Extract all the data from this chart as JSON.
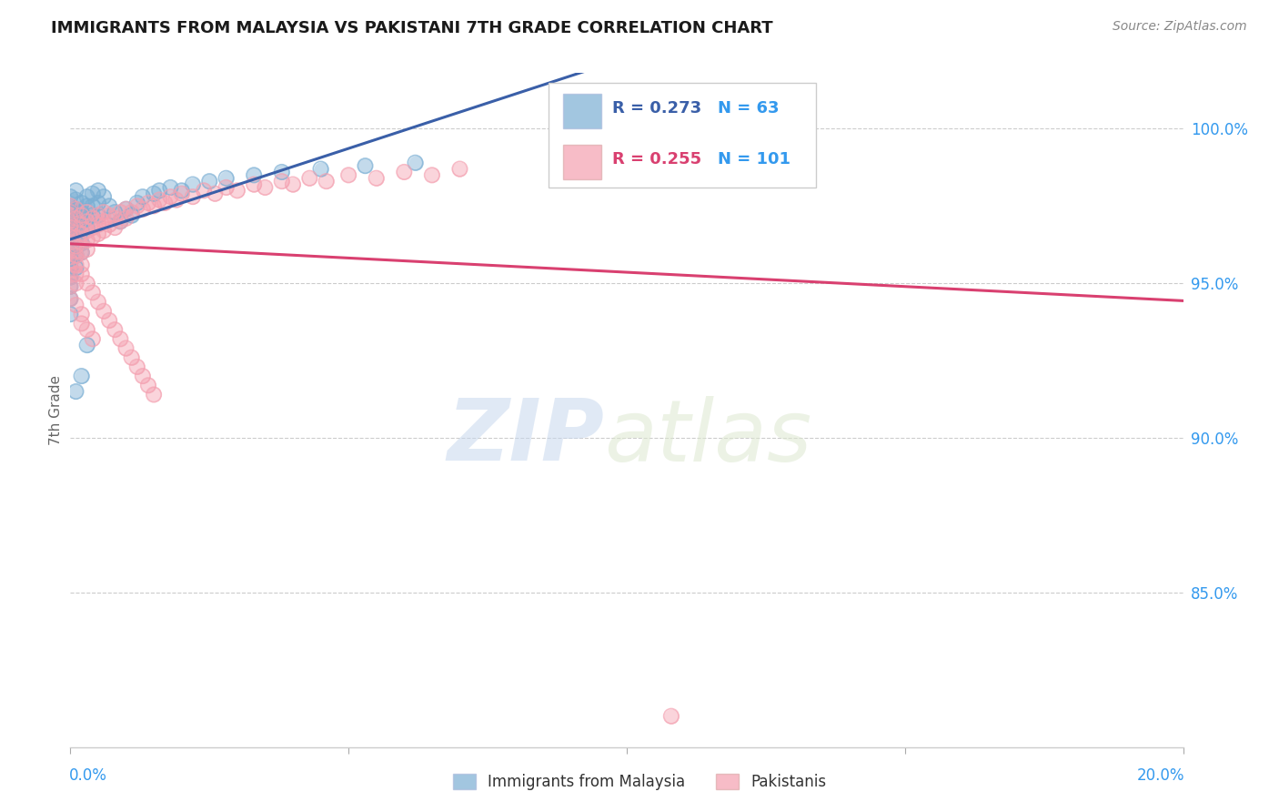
{
  "title": "IMMIGRANTS FROM MALAYSIA VS PAKISTANI 7TH GRADE CORRELATION CHART",
  "source": "Source: ZipAtlas.com",
  "ylabel": "7th Grade",
  "yticks": [
    100.0,
    95.0,
    90.0,
    85.0
  ],
  "ytick_labels": [
    "100.0%",
    "95.0%",
    "90.0%",
    "85.0%"
  ],
  "legend_label1": "Immigrants from Malaysia",
  "legend_label2": "Pakistanis",
  "color_blue": "#7BAFD4",
  "color_pink": "#F4A0B0",
  "color_line_blue": "#3A5FA8",
  "color_line_pink": "#D94070",
  "bg_color": "#ffffff",
  "watermark_zip": "ZIP",
  "watermark_atlas": "atlas",
  "blue_x": [
    0.0,
    0.0,
    0.0,
    0.0,
    0.0,
    0.0,
    0.0,
    0.0,
    0.0,
    0.0,
    0.0,
    0.0,
    0.0,
    0.0,
    0.0,
    0.001,
    0.001,
    0.001,
    0.001,
    0.001,
    0.001,
    0.001,
    0.001,
    0.001,
    0.002,
    0.002,
    0.002,
    0.002,
    0.002,
    0.002,
    0.003,
    0.003,
    0.003,
    0.003,
    0.004,
    0.004,
    0.004,
    0.005,
    0.005,
    0.005,
    0.006,
    0.007,
    0.008,
    0.009,
    0.01,
    0.011,
    0.012,
    0.013,
    0.015,
    0.016,
    0.018,
    0.02,
    0.022,
    0.025,
    0.028,
    0.033,
    0.038,
    0.045,
    0.053,
    0.062,
    0.001,
    0.002,
    0.003
  ],
  "blue_y": [
    97.8,
    97.5,
    97.3,
    97.1,
    96.9,
    96.7,
    96.5,
    96.2,
    96.0,
    95.8,
    95.5,
    95.2,
    94.9,
    94.5,
    94.0,
    98.0,
    97.7,
    97.4,
    97.1,
    96.8,
    96.5,
    96.2,
    95.9,
    95.5,
    97.6,
    97.3,
    97.0,
    96.7,
    96.3,
    96.0,
    97.8,
    97.5,
    97.1,
    96.8,
    97.9,
    97.5,
    97.2,
    98.0,
    97.6,
    97.2,
    97.8,
    97.5,
    97.3,
    97.0,
    97.4,
    97.2,
    97.6,
    97.8,
    97.9,
    98.0,
    98.1,
    98.0,
    98.2,
    98.3,
    98.4,
    98.5,
    98.6,
    98.7,
    98.8,
    98.9,
    91.5,
    92.0,
    93.0
  ],
  "pink_x": [
    0.0,
    0.0,
    0.0,
    0.0,
    0.0,
    0.0,
    0.0,
    0.0,
    0.0,
    0.0,
    0.0,
    0.0,
    0.001,
    0.001,
    0.001,
    0.001,
    0.001,
    0.001,
    0.001,
    0.001,
    0.001,
    0.002,
    0.002,
    0.002,
    0.002,
    0.002,
    0.003,
    0.003,
    0.003,
    0.003,
    0.003,
    0.004,
    0.004,
    0.004,
    0.005,
    0.005,
    0.005,
    0.006,
    0.006,
    0.006,
    0.007,
    0.007,
    0.008,
    0.008,
    0.009,
    0.009,
    0.01,
    0.01,
    0.011,
    0.012,
    0.013,
    0.014,
    0.015,
    0.016,
    0.017,
    0.018,
    0.019,
    0.02,
    0.022,
    0.024,
    0.026,
    0.028,
    0.03,
    0.033,
    0.035,
    0.038,
    0.04,
    0.043,
    0.046,
    0.05,
    0.055,
    0.06,
    0.065,
    0.07,
    0.0,
    0.001,
    0.002,
    0.002,
    0.003,
    0.004,
    0.0,
    0.0,
    0.001,
    0.001,
    0.002,
    0.002,
    0.003,
    0.004,
    0.005,
    0.006,
    0.007,
    0.008,
    0.009,
    0.01,
    0.011,
    0.012,
    0.013,
    0.014,
    0.015,
    0.108
  ],
  "pink_y": [
    97.5,
    97.3,
    97.1,
    96.9,
    96.7,
    96.5,
    96.2,
    96.0,
    95.7,
    95.5,
    95.2,
    94.9,
    97.4,
    97.1,
    96.8,
    96.5,
    96.2,
    95.9,
    95.6,
    95.3,
    95.0,
    97.2,
    96.9,
    96.6,
    96.3,
    96.0,
    97.3,
    97.0,
    96.7,
    96.4,
    96.1,
    97.1,
    96.8,
    96.5,
    97.2,
    96.9,
    96.6,
    97.3,
    97.0,
    96.7,
    97.2,
    96.9,
    97.1,
    96.8,
    97.3,
    97.0,
    97.4,
    97.1,
    97.3,
    97.5,
    97.4,
    97.6,
    97.5,
    97.7,
    97.6,
    97.8,
    97.7,
    97.9,
    97.8,
    98.0,
    97.9,
    98.1,
    98.0,
    98.2,
    98.1,
    98.3,
    98.2,
    98.4,
    98.3,
    98.5,
    98.4,
    98.6,
    98.5,
    98.7,
    94.5,
    94.3,
    94.0,
    93.7,
    93.5,
    93.2,
    96.8,
    96.5,
    96.2,
    95.9,
    95.6,
    95.3,
    95.0,
    94.7,
    94.4,
    94.1,
    93.8,
    93.5,
    93.2,
    92.9,
    92.6,
    92.3,
    92.0,
    91.7,
    91.4,
    81.0
  ]
}
